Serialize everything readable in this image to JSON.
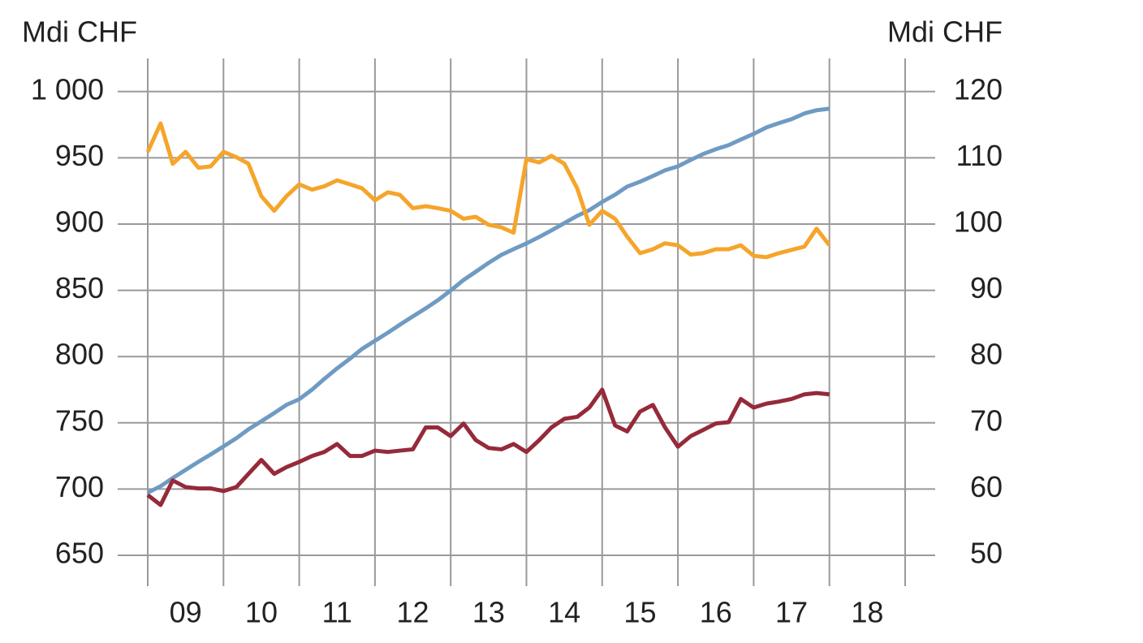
{
  "chart_data": {
    "type": "line",
    "ylabel": "Mdi CHF",
    "y2label": "Mdi CHF",
    "x": [
      2009,
      2009.17,
      2009.33,
      2009.5,
      2009.67,
      2009.83,
      2010,
      2010.17,
      2010.33,
      2010.5,
      2010.67,
      2010.83,
      2011,
      2011.17,
      2011.33,
      2011.5,
      2011.67,
      2011.83,
      2012,
      2012.17,
      2012.33,
      2012.5,
      2012.67,
      2012.83,
      2013,
      2013.17,
      2013.33,
      2013.5,
      2013.67,
      2013.83,
      2014,
      2014.17,
      2014.33,
      2014.5,
      2014.67,
      2014.83,
      2015,
      2015.17,
      2015.33,
      2015.5,
      2015.67,
      2015.83,
      2016,
      2016.17,
      2016.33,
      2016.5,
      2016.67,
      2016.83,
      2017,
      2017.17,
      2017.33,
      2017.5,
      2017.67,
      2017.83,
      2018
    ],
    "series": [
      {
        "color": "#6f9bc3",
        "axis": "y",
        "values": [
          697.3,
          702.2,
          708.3,
          714.5,
          720.6,
          726.1,
          732.2,
          738.4,
          745.1,
          751.2,
          757.4,
          763.5,
          767.8,
          775.1,
          783.1,
          791.1,
          798.4,
          805.8,
          811.9,
          818.0,
          824.1,
          830.3,
          836.4,
          842.5,
          849.9,
          857.8,
          864.0,
          870.7,
          876.8,
          881.1,
          885.4,
          890.3,
          895.2,
          900.7,
          906.2,
          910.5,
          916.7,
          922.2,
          928.3,
          932.0,
          936.3,
          940.6,
          943.6,
          948.5,
          952.8,
          956.5,
          959.6,
          963.8,
          968.1,
          973.0,
          976.1,
          979.2,
          983.5,
          985.9,
          987.1
        ]
      },
      {
        "color": "#f5a52a",
        "axis": "y2",
        "values": [
          110.9,
          115.2,
          109.1,
          110.9,
          108.5,
          108.7,
          110.9,
          110.1,
          109.1,
          104.2,
          102.0,
          104.2,
          106.0,
          105.2,
          105.7,
          106.6,
          106.0,
          105.4,
          103.6,
          104.8,
          104.4,
          102.4,
          102.7,
          102.4,
          102.0,
          100.8,
          101.1,
          99.9,
          99.5,
          98.7,
          109.8,
          109.3,
          110.3,
          109.1,
          105.4,
          99.9,
          102.0,
          100.8,
          98.1,
          95.6,
          96.2,
          97.1,
          96.8,
          95.4,
          95.6,
          96.2,
          96.2,
          96.8,
          95.2,
          95.0,
          95.6,
          96.1,
          96.6,
          99.3,
          96.8
        ]
      },
      {
        "color": "#952a3a",
        "axis": "y2",
        "values": [
          59.1,
          57.6,
          61.3,
          60.3,
          60.1,
          60.1,
          59.7,
          60.3,
          62.3,
          64.4,
          62.3,
          63.3,
          64.1,
          65.0,
          65.6,
          66.8,
          65.0,
          65.0,
          65.8,
          65.6,
          65.8,
          66.0,
          69.3,
          69.3,
          68.0,
          69.9,
          67.4,
          66.2,
          66.0,
          66.8,
          65.6,
          67.4,
          69.3,
          70.6,
          70.9,
          72.3,
          75.0,
          69.6,
          68.7,
          71.7,
          72.7,
          69.3,
          66.4,
          68.0,
          68.9,
          69.9,
          70.1,
          73.6,
          72.3,
          72.9,
          73.2,
          73.6,
          74.3,
          74.5,
          74.3
        ]
      }
    ],
    "xlim": [
      2009,
      2019
    ],
    "xgrid": [
      2009,
      2010,
      2011,
      2012,
      2013,
      2014,
      2015,
      2016,
      2017,
      2018,
      2019
    ],
    "xticks": [
      {
        "value": 2009.5,
        "label": "09"
      },
      {
        "value": 2010.5,
        "label": "10"
      },
      {
        "value": 2011.5,
        "label": "11"
      },
      {
        "value": 2012.5,
        "label": "12"
      },
      {
        "value": 2013.5,
        "label": "13"
      },
      {
        "value": 2014.5,
        "label": "14"
      },
      {
        "value": 2015.5,
        "label": "15"
      },
      {
        "value": 2016.5,
        "label": "16"
      },
      {
        "value": 2017.5,
        "label": "17"
      },
      {
        "value": 2018.5,
        "label": "18"
      }
    ],
    "ylim": [
      625,
      1025
    ],
    "yticks": [
      650,
      700,
      750,
      800,
      850,
      900,
      950,
      {
        "value": 1000,
        "label": "1 000"
      }
    ],
    "y2lim": [
      45,
      125
    ],
    "y2ticks": [
      50,
      60,
      70,
      80,
      90,
      100,
      110,
      120
    ],
    "grid": true
  }
}
